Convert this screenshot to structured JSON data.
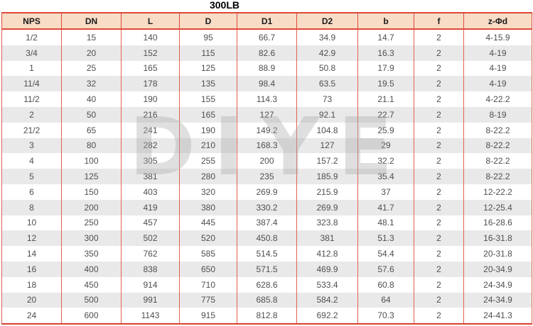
{
  "title": "300LB",
  "watermark_text": "DIYE",
  "colors": {
    "border_red": "#dd4a3a",
    "header_bg": "#f8dcc6",
    "stripe_bg": "#e9e9e9",
    "header_text": "#1a1a1a",
    "cell_text": "#4f4f4f",
    "watermark_gray": "#c8c8c8"
  },
  "table": {
    "columns": [
      "NPS",
      "DN",
      "L",
      "D",
      "D1",
      "D2",
      "b",
      "f",
      "z-Φd"
    ],
    "rows": [
      [
        "1/2",
        "15",
        "140",
        "95",
        "66.7",
        "34.9",
        "14.7",
        "2",
        "4-15.9"
      ],
      [
        "3/4",
        "20",
        "152",
        "115",
        "82.6",
        "42.9",
        "16.3",
        "2",
        "4-19"
      ],
      [
        "1",
        "25",
        "165",
        "125",
        "88.9",
        "50.8",
        "17.9",
        "2",
        "4-19"
      ],
      [
        "11/4",
        "32",
        "178",
        "135",
        "98.4",
        "63.5",
        "19.5",
        "2",
        "4-19"
      ],
      [
        "11/2",
        "40",
        "190",
        "155",
        "114.3",
        "73",
        "21.1",
        "2",
        "4-22.2"
      ],
      [
        "2",
        "50",
        "216",
        "165",
        "127",
        "92.1",
        "22.7",
        "2",
        "8-19"
      ],
      [
        "21/2",
        "65",
        "241",
        "190",
        "149.2",
        "104.8",
        "25.9",
        "2",
        "8-22.2"
      ],
      [
        "3",
        "80",
        "282",
        "210",
        "168.3",
        "127",
        "29",
        "2",
        "8-22.2"
      ],
      [
        "4",
        "100",
        "305",
        "255",
        "200",
        "157.2",
        "32.2",
        "2",
        "8-22.2"
      ],
      [
        "5",
        "125",
        "381",
        "280",
        "235",
        "185.9",
        "35.4",
        "2",
        "8-22.2"
      ],
      [
        "6",
        "150",
        "403",
        "320",
        "269.9",
        "215.9",
        "37",
        "2",
        "12-22.2"
      ],
      [
        "8",
        "200",
        "419",
        "380",
        "330.2",
        "269.9",
        "41.7",
        "2",
        "12-25.4"
      ],
      [
        "10",
        "250",
        "457",
        "445",
        "387.4",
        "323.8",
        "48.1",
        "2",
        "16-28.6"
      ],
      [
        "12",
        "300",
        "502",
        "520",
        "450.8",
        "381",
        "51.3",
        "2",
        "16-31.8"
      ],
      [
        "14",
        "350",
        "762",
        "585",
        "514.5",
        "412.8",
        "54.4",
        "2",
        "20-31.8"
      ],
      [
        "16",
        "400",
        "838",
        "650",
        "571.5",
        "469.9",
        "57.6",
        "2",
        "20-34.9"
      ],
      [
        "18",
        "450",
        "914",
        "710",
        "628.6",
        "533.4",
        "60.8",
        "2",
        "24-34.9"
      ],
      [
        "20",
        "500",
        "991",
        "775",
        "685.8",
        "584.2",
        "64",
        "2",
        "24-34.9"
      ],
      [
        "24",
        "600",
        "1143",
        "915",
        "812.8",
        "692.2",
        "70.3",
        "2",
        "24-41.3"
      ]
    ]
  }
}
